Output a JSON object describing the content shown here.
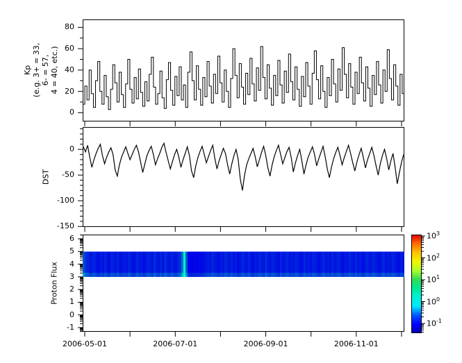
{
  "figure": {
    "background": "#ffffff",
    "axis_color": "#000000",
    "line_color": "#000000"
  },
  "x_axis": {
    "tick_dates": [
      "2006-05-01",
      "2006-06-01",
      "2006-07-01",
      "2006-08-01",
      "2006-09-01",
      "2006-10-01",
      "2006-11-01",
      "2006-12-01"
    ],
    "tick_labels": [
      "2006-05-01",
      "",
      "2006-07-01",
      "",
      "2006-09-01",
      "",
      "2006-11-01",
      ""
    ]
  },
  "chart_data": [
    {
      "type": "line",
      "title": "",
      "ylabel": "Kp (e.g. 3+ = 33, 6- = 57, 4 = 40, etc.)",
      "ylabel_lines": [
        "Kp",
        "(e.g. 3+ = 33,",
        "6- = 57,",
        "4 = 40, etc.)"
      ],
      "ylim": [
        -8.2,
        87.4
      ],
      "yticks": [
        80,
        60,
        40,
        20,
        0
      ],
      "ytick_labels": [
        "80",
        "60",
        "40",
        "20",
        "0"
      ],
      "yminor_step": 10,
      "x_start": "2006-04-29",
      "x_end": "2006-12-04",
      "line_color": "#000000",
      "values": [
        8,
        25,
        12,
        40,
        18,
        5,
        30,
        48,
        20,
        8,
        35,
        15,
        3,
        22,
        45,
        28,
        10,
        38,
        17,
        5,
        27,
        50,
        22,
        9,
        33,
        13,
        41,
        19,
        6,
        29,
        11,
        36,
        52,
        24,
        8,
        18,
        39,
        14,
        4,
        31,
        47,
        21,
        7,
        34,
        16,
        43,
        12,
        26,
        5,
        38,
        57,
        30,
        12,
        44,
        22,
        7,
        33,
        15,
        48,
        25,
        9,
        36,
        18,
        53,
        28,
        10,
        40,
        20,
        5,
        32,
        60,
        35,
        14,
        46,
        24,
        8,
        37,
        17,
        51,
        27,
        11,
        42,
        21,
        62,
        33,
        13,
        45,
        23,
        7,
        35,
        16,
        49,
        26,
        9,
        39,
        19,
        55,
        29,
        12,
        43,
        22,
        6,
        34,
        15,
        47,
        25,
        8,
        37,
        58,
        31,
        13,
        44,
        20,
        5,
        33,
        16,
        50,
        27,
        10,
        41,
        21,
        61,
        36,
        14,
        46,
        24,
        8,
        38,
        18,
        52,
        28,
        11,
        43,
        23,
        6,
        35,
        17,
        48,
        26,
        9,
        40,
        20,
        59,
        32,
        12,
        45,
        25,
        7,
        36,
        18
      ]
    },
    {
      "type": "line",
      "title": "",
      "ylabel": "DST",
      "ylim": [
        -151,
        43.5
      ],
      "yticks": [
        0,
        -50,
        -100,
        -150
      ],
      "ytick_labels": [
        "0",
        "-50",
        "-100",
        "-150"
      ],
      "yminor_step": 10,
      "line_color": "#000000",
      "values": [
        5,
        -5,
        8,
        -15,
        -35,
        -20,
        -8,
        2,
        10,
        -12,
        -28,
        -15,
        -5,
        3,
        -10,
        -40,
        -52,
        -30,
        -15,
        -5,
        5,
        -8,
        -20,
        -10,
        0,
        8,
        -5,
        -25,
        -45,
        -28,
        -12,
        -2,
        6,
        -10,
        -30,
        -18,
        -8,
        4,
        12,
        -6,
        -22,
        -38,
        -24,
        -10,
        0,
        -15,
        -35,
        -20,
        -8,
        5,
        -12,
        -42,
        -55,
        -32,
        -16,
        -4,
        6,
        -10,
        -26,
        -14,
        -2,
        8,
        -18,
        -38,
        -22,
        -10,
        2,
        -8,
        -30,
        -48,
        -28,
        -12,
        0,
        -20,
        -58,
        -80,
        -50,
        -30,
        -18,
        -8,
        2,
        -14,
        -34,
        -20,
        -6,
        6,
        -12,
        -36,
        -52,
        -30,
        -14,
        -2,
        8,
        -10,
        -28,
        -16,
        -4,
        4,
        -16,
        -44,
        -26,
        -12,
        0,
        -22,
        -48,
        -30,
        -15,
        -5,
        5,
        -10,
        -32,
        -18,
        -6,
        6,
        -14,
        -38,
        -55,
        -34,
        -18,
        -6,
        4,
        -12,
        -30,
        -16,
        -4,
        8,
        -8,
        -26,
        -42,
        -24,
        -10,
        2,
        -16,
        -36,
        -20,
        -8,
        4,
        -12,
        -32,
        -50,
        -28,
        -12,
        0,
        -18,
        -40,
        -22,
        -8,
        -35,
        -67,
        -45,
        -25,
        -10
      ]
    },
    {
      "type": "heatmap",
      "title": "",
      "ylabel": "Proton Flux",
      "ylim": [
        -1.33,
        6.33
      ],
      "yticks": [
        6,
        5,
        4,
        3,
        2,
        1,
        0,
        -1
      ],
      "ytick_labels": [
        "6",
        "5",
        "4",
        "3",
        "2",
        "1",
        "0",
        "-1"
      ],
      "y_minor": "log-decade",
      "band_y_range": [
        3,
        5
      ],
      "band_base_color": "#0019e6",
      "streak_color": "#00ffbe",
      "columns": [
        0.5,
        0.35,
        0.3,
        0.2,
        0.25,
        0.3,
        0.2,
        0.15,
        0.25,
        0.2,
        0.3,
        0.2,
        0.15,
        0.3,
        0.25,
        0.2,
        0.3,
        0.15,
        0.2,
        0.25,
        0.2,
        0.3,
        0.25,
        0.15,
        0.2,
        0.3,
        0.2,
        0.25,
        0.15,
        0.2,
        0.3,
        0.25,
        0.2,
        0.35,
        0.25,
        0.2,
        0.3,
        0.2,
        0.35,
        0.25,
        0.2,
        0.3,
        0.25,
        0.2,
        0.3,
        0.35,
        0.6,
        1.0,
        0.5,
        0.1,
        0.05,
        0.08,
        0.1,
        0.08,
        0.12,
        0.1,
        0.15,
        0.2,
        0.25,
        0.2,
        0.3,
        0.25,
        0.2,
        0.15,
        0.25,
        0.2,
        0.3,
        0.25,
        0.2,
        0.3,
        0.2,
        0.25,
        0.15,
        0.2,
        0.3,
        0.25,
        0.2,
        0.3,
        0.2,
        0.15,
        0.25,
        0.2,
        0.3,
        0.25,
        0.2,
        0.35,
        0.25,
        0.2,
        0.3,
        0.25,
        0.2,
        0.15,
        0.3,
        0.2,
        0.25,
        0.3,
        0.2,
        0.25,
        0.2,
        0.3,
        0.25,
        0.15,
        0.2,
        0.3,
        0.2,
        0.25,
        0.2,
        0.3,
        0.25,
        0.2,
        0.15,
        0.25,
        0.3,
        0.2,
        0.25,
        0.2,
        0.3,
        0.2,
        0.25,
        0.3,
        0.2,
        0.15,
        0.25,
        0.2,
        0.3,
        0.25,
        0.2,
        0.3,
        0.2,
        0.25,
        0.15,
        0.2,
        0.3,
        0.25,
        0.2,
        0.3,
        0.25,
        0.2,
        0.15,
        0.25,
        0.3,
        0.2,
        0.25,
        0.2,
        0.3,
        0.25,
        0.2,
        0.15,
        0.25,
        0.2
      ],
      "colorbar": {
        "scale": "log",
        "tick_exponents": [
          3,
          2,
          1,
          0,
          -1
        ],
        "tick_label_base": "10",
        "gradient_top_to_bottom": [
          "#e00000",
          "#ff6a00",
          "#ffc000",
          "#f4f400",
          "#aaff2a",
          "#33dd55",
          "#00e896",
          "#00f2d8",
          "#00e8ff",
          "#0055ff",
          "#0000ff",
          "#0000a8"
        ]
      }
    }
  ]
}
